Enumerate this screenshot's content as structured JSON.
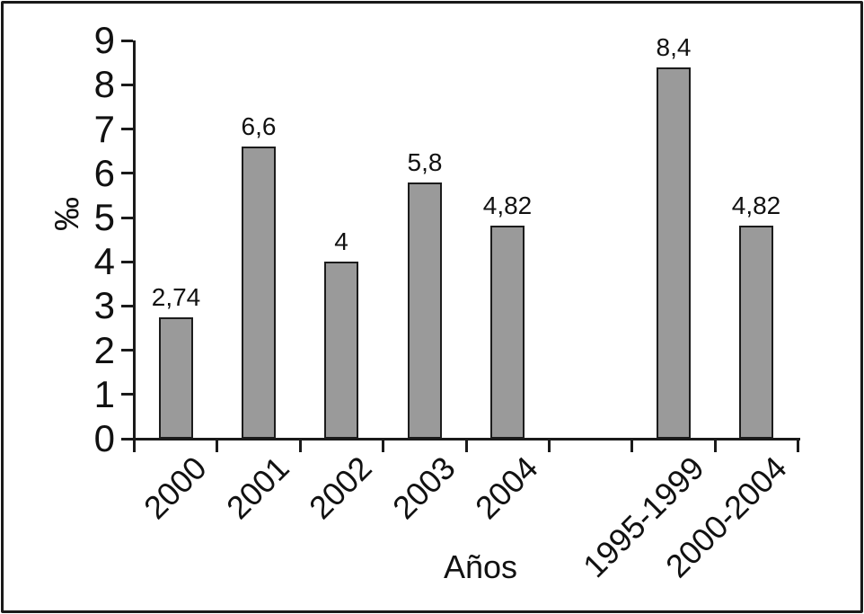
{
  "figure": {
    "background": "#ffffff",
    "frame_border_color": "#1a1a1a"
  },
  "chart_data": {
    "type": "bar",
    "title": "",
    "xlabel": "Años",
    "ylabel": "‰",
    "ylim": [
      0,
      9
    ],
    "yticks": [
      0,
      1,
      2,
      3,
      4,
      5,
      6,
      7,
      8,
      9
    ],
    "categories": [
      "2000",
      "2001",
      "2002",
      "2003",
      "2004",
      "1995-1999",
      "2000-2004"
    ],
    "values": [
      2.74,
      6.6,
      4,
      5.8,
      4.82,
      8.4,
      4.82
    ],
    "value_labels": [
      "2,74",
      "6,6",
      "4",
      "5,8",
      "4,82",
      "8,4",
      "4,82"
    ],
    "slots": [
      0,
      1,
      2,
      3,
      4,
      6,
      7
    ],
    "num_slots": 8,
    "grid": false,
    "legend": false,
    "bar_fill": "#9a9a9a",
    "bar_border": "#1c1c1c",
    "axis_color": "#1a1a1a",
    "xtick_label_rotation_deg": -45
  }
}
